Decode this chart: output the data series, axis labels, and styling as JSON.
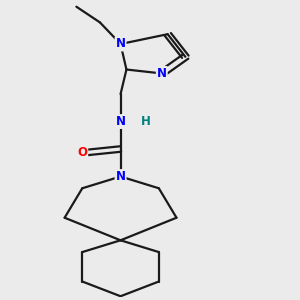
{
  "background_color": "#ebebeb",
  "bond_color": "#1a1a1a",
  "N_color": "#0000ff",
  "O_color": "#ff0000",
  "H_color": "#008080",
  "line_width": 1.6,
  "figsize": [
    3.0,
    3.0
  ],
  "dpi": 100,
  "xlim": [
    0.5,
    2.5
  ],
  "ylim": [
    0.1,
    3.1
  ]
}
